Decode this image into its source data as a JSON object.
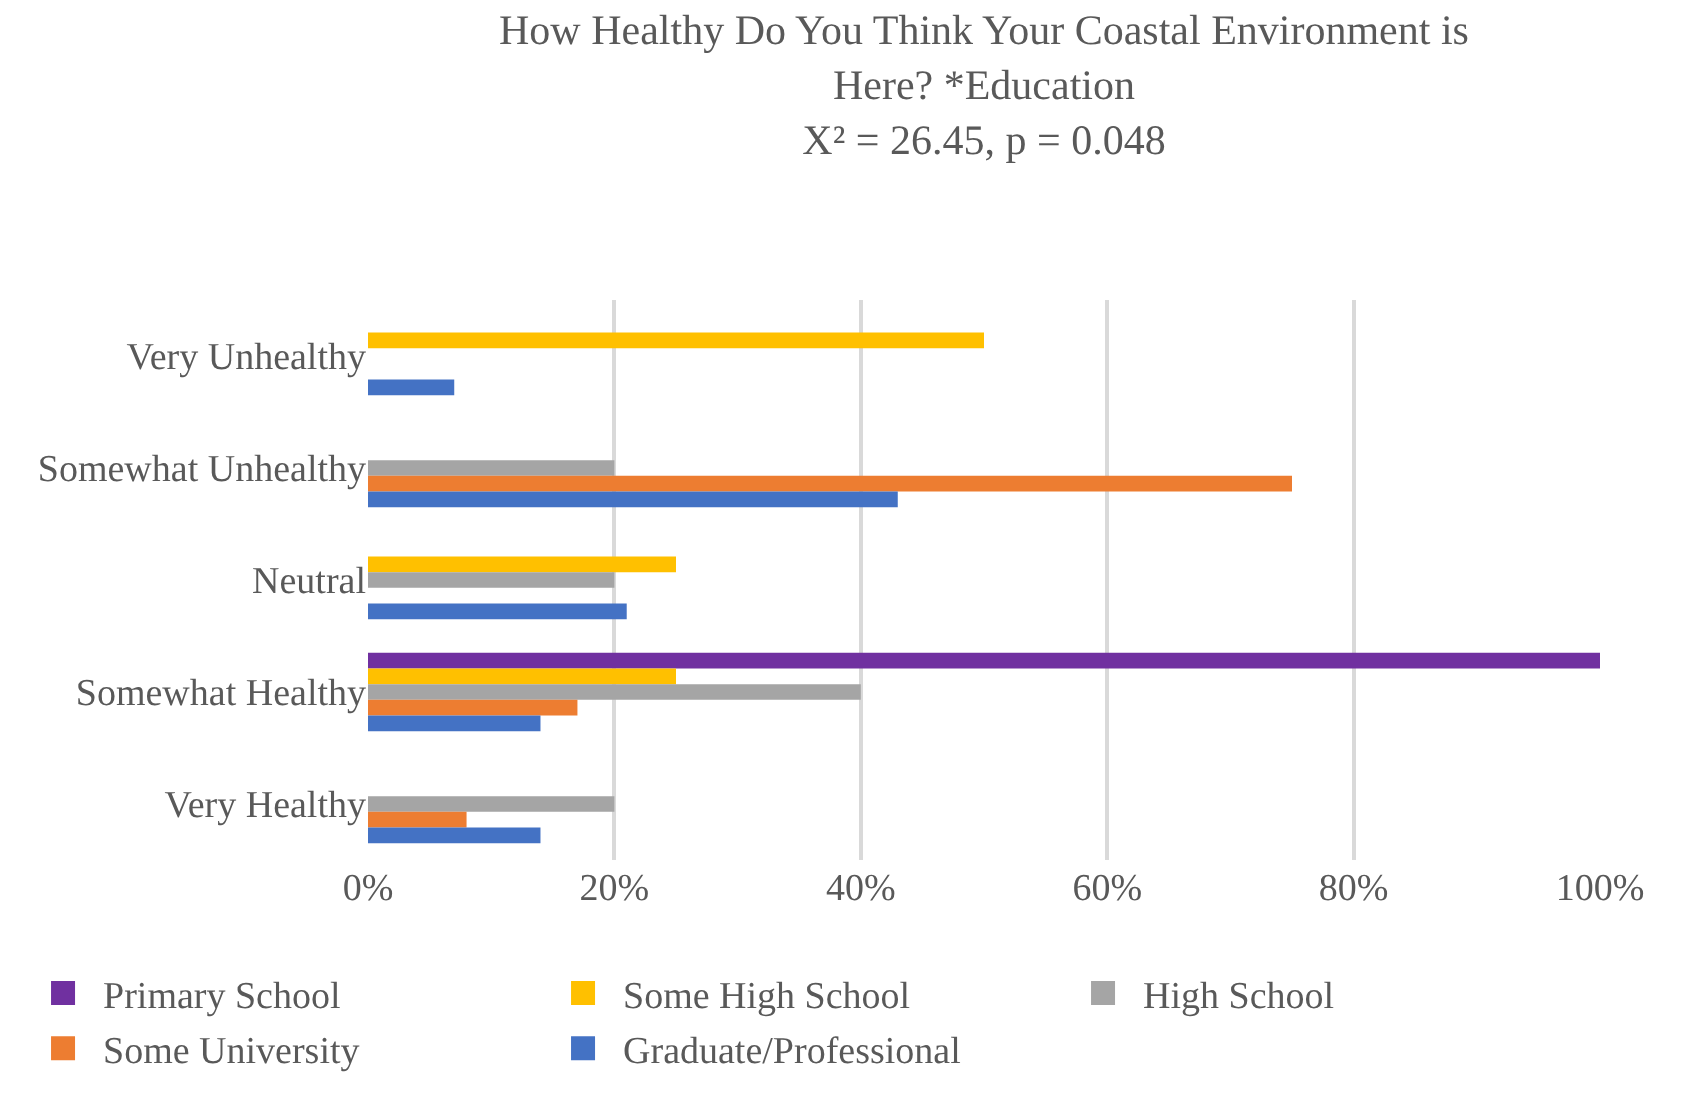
{
  "chart_data": {
    "type": "bar",
    "orientation": "horizontal",
    "title": "How Healthy Do You Think Your Coastal Environment is Here? *Education",
    "subtitle": "X² = 26.45, p = 0.048",
    "categories": [
      "Very Unhealthy",
      "Somewhat Unhealthy",
      "Neutral",
      "Somewhat Healthy",
      "Very Healthy"
    ],
    "series": [
      {
        "name": "Primary School",
        "color": "#7030a0",
        "values": [
          null,
          null,
          null,
          100,
          null
        ]
      },
      {
        "name": "Some High School",
        "color": "#ffc000",
        "values": [
          50,
          null,
          25,
          25,
          null
        ]
      },
      {
        "name": "High School",
        "color": "#a5a5a5",
        "values": [
          null,
          20,
          20,
          40,
          20
        ]
      },
      {
        "name": "Some University",
        "color": "#ed7d31",
        "values": [
          null,
          75,
          null,
          17,
          8
        ]
      },
      {
        "name": "Graduate/Professional",
        "color": "#4472c4",
        "values": [
          7,
          43,
          21,
          14,
          14
        ]
      }
    ],
    "xlim": [
      0,
      100
    ],
    "xticks": [
      {
        "value": 0,
        "label": "0%"
      },
      {
        "value": 20,
        "label": "20%"
      },
      {
        "value": 40,
        "label": "40%"
      },
      {
        "value": 60,
        "label": "60%"
      },
      {
        "value": 80,
        "label": "80%"
      },
      {
        "value": 100,
        "label": "100%"
      }
    ],
    "grid": "x",
    "legend": "bottom"
  }
}
